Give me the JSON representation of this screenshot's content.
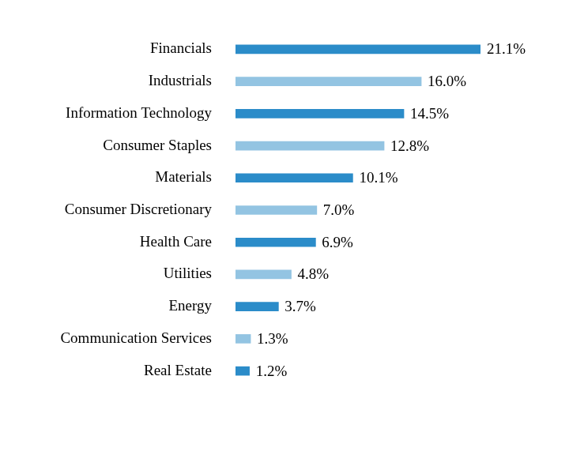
{
  "chart_data": {
    "type": "bar",
    "orientation": "horizontal",
    "categories": [
      "Financials",
      "Industrials",
      "Information Technology",
      "Consumer Staples",
      "Materials",
      "Consumer Discretionary",
      "Health Care",
      "Utilities",
      "Energy",
      "Communication Services",
      "Real Estate"
    ],
    "values": [
      21.1,
      16.0,
      14.5,
      12.8,
      10.1,
      7.0,
      6.9,
      4.8,
      3.7,
      1.3,
      1.2
    ],
    "value_labels": [
      "21.1%",
      "16.0%",
      "14.5%",
      "12.8%",
      "10.1%",
      "7.0%",
      "6.9%",
      "4.8%",
      "3.7%",
      "1.3%",
      "1.2%"
    ],
    "colors": [
      "#2b8cc9",
      "#93c4e2",
      "#2b8cc9",
      "#93c4e2",
      "#2b8cc9",
      "#93c4e2",
      "#2b8cc9",
      "#93c4e2",
      "#2b8cc9",
      "#93c4e2",
      "#2b8cc9"
    ],
    "data_labels": true,
    "tick_labels": "y",
    "grid": false
  }
}
